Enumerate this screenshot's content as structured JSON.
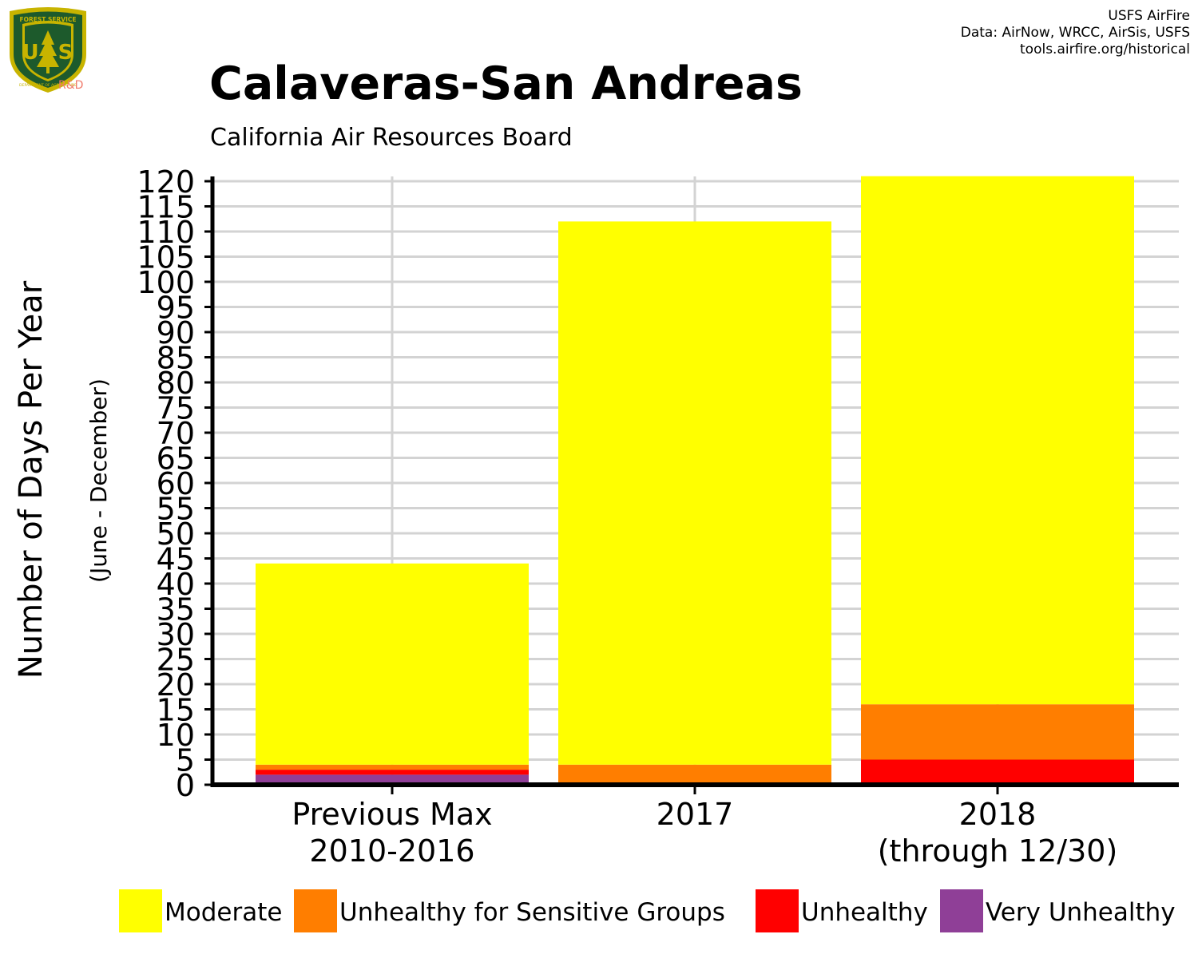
{
  "credit": {
    "line1": "USFS AirFire",
    "line2": "Data: AirNow, WRCC, AirSis, USFS",
    "line3": "tools.airfire.org/historical"
  },
  "logo": {
    "text_top": "FOREST SERVICE",
    "text_bottom": "DEPARTMENT OF AGRICULTURE",
    "letters_left": "U",
    "letters_right": "S",
    "rd": "R&D"
  },
  "colors": {
    "moderate": "#ffff00",
    "usg": "#ff7e00",
    "unhealthy": "#ff0000",
    "very_unhealthy": "#8f3f97",
    "grid": "#d3d3d3"
  },
  "chart_data": {
    "type": "bar",
    "stacked": true,
    "title": "Calaveras-San Andreas",
    "subtitle": "California Air Resources Board",
    "ylabel": "Number of Days Per Year",
    "ylabel_sub": "(June - December)",
    "xlabel": "",
    "ylim": [
      0,
      120
    ],
    "yticks": [
      0,
      5,
      10,
      15,
      20,
      25,
      30,
      35,
      40,
      45,
      50,
      55,
      60,
      65,
      70,
      75,
      80,
      85,
      90,
      95,
      100,
      105,
      110,
      115,
      120
    ],
    "categories": [
      [
        "Previous Max",
        "2010-2016"
      ],
      [
        "2017"
      ],
      [
        "2018",
        "(through 12/30)"
      ]
    ],
    "grid": true,
    "legend_position": "bottom",
    "series": [
      {
        "name": "Very Unhealthy",
        "color": "#8f3f97",
        "values": [
          2,
          0,
          0
        ]
      },
      {
        "name": "Unhealthy",
        "color": "#ff0000",
        "values": [
          1,
          0,
          5
        ]
      },
      {
        "name": "Unhealthy for Sensitive Groups",
        "color": "#ff7e00",
        "values": [
          1,
          4,
          11
        ]
      },
      {
        "name": "Moderate",
        "color": "#ffff00",
        "values": [
          40,
          108,
          105
        ]
      }
    ],
    "legend_order": [
      "Moderate",
      "Unhealthy for Sensitive Groups",
      "Unhealthy",
      "Very Unhealthy"
    ]
  }
}
